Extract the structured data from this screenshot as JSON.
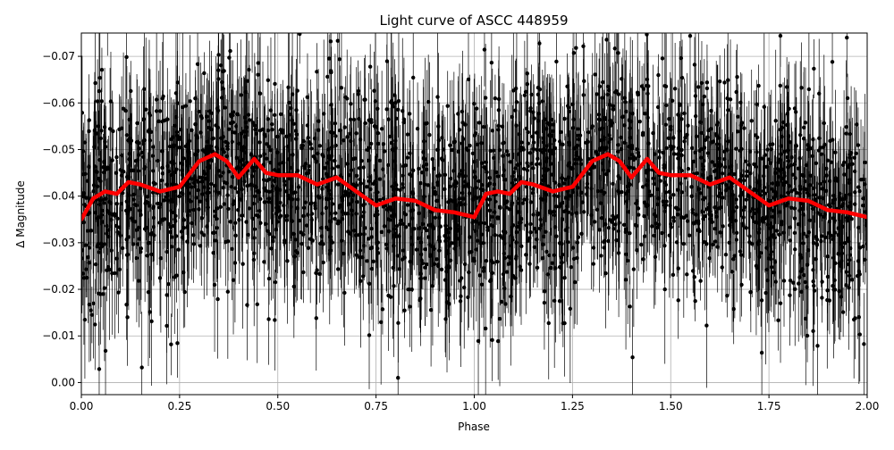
{
  "chart_data": {
    "type": "scatter",
    "title": "Light curve of ASCC 448959",
    "xlabel": "Phase",
    "ylabel": "Δ Magnitude",
    "xlim": [
      0.0,
      2.0
    ],
    "ylim": [
      0.0026,
      -0.075
    ],
    "y_inverted": true,
    "grid": true,
    "x_ticks": [
      "0.00",
      "0.25",
      "0.50",
      "0.75",
      "1.00",
      "1.25",
      "1.50",
      "1.75",
      "2.00"
    ],
    "y_ticks": [
      "−0.07",
      "−0.06",
      "−0.05",
      "−0.04",
      "−0.03",
      "−0.02",
      "−0.01",
      "0.00"
    ],
    "x_tick_values": [
      0.0,
      0.25,
      0.5,
      0.75,
      1.0,
      1.25,
      1.5,
      1.75,
      2.0
    ],
    "y_tick_values": [
      -0.07,
      -0.06,
      -0.05,
      -0.04,
      -0.03,
      -0.02,
      -0.01,
      0.0
    ],
    "series": [
      {
        "kind": "observations",
        "marker": "dot",
        "errorbars": true,
        "color": "#000000",
        "note": "dense phase-folded photometry with error bars; scatter spans roughly -0.075 to 0.002 around the binned curve"
      },
      {
        "kind": "binned_curve",
        "color": "#ff0000",
        "x": [
          0.0,
          0.03,
          0.06,
          0.09,
          0.12,
          0.15,
          0.2,
          0.25,
          0.3,
          0.34,
          0.37,
          0.4,
          0.44,
          0.47,
          0.5,
          0.55,
          0.6,
          0.65,
          0.7,
          0.75,
          0.8,
          0.85,
          0.9,
          0.95,
          1.0,
          1.03,
          1.06,
          1.09,
          1.12,
          1.15,
          1.2,
          1.25,
          1.3,
          1.34,
          1.37,
          1.4,
          1.44,
          1.47,
          1.5,
          1.55,
          1.6,
          1.65,
          1.7,
          1.75,
          1.8,
          1.85,
          1.9,
          1.95,
          2.0
        ],
        "y": [
          -0.035,
          -0.0395,
          -0.041,
          -0.0405,
          -0.043,
          -0.0425,
          -0.041,
          -0.042,
          -0.0475,
          -0.049,
          -0.0475,
          -0.044,
          -0.048,
          -0.045,
          -0.0445,
          -0.0445,
          -0.0425,
          -0.044,
          -0.041,
          -0.038,
          -0.0395,
          -0.039,
          -0.037,
          -0.0365,
          -0.0355,
          -0.0405,
          -0.041,
          -0.0405,
          -0.043,
          -0.0425,
          -0.041,
          -0.042,
          -0.0475,
          -0.049,
          -0.0475,
          -0.044,
          -0.048,
          -0.045,
          -0.0445,
          -0.0445,
          -0.0425,
          -0.044,
          -0.041,
          -0.038,
          -0.0395,
          -0.039,
          -0.037,
          -0.0365,
          -0.0355
        ]
      }
    ]
  }
}
